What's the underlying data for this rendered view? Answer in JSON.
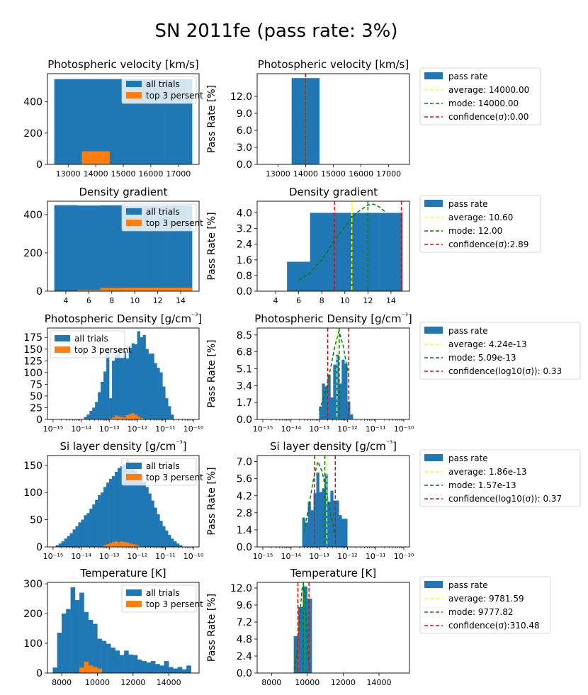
{
  "figure_title": "SN 2011fe (pass rate: 3%)",
  "colors": {
    "all_trials": "#1f77b4",
    "top": "#ff7f0e",
    "pass_rate": "#1f77b4",
    "average": "#ffff00",
    "mode": "#008000",
    "confidence": "#ff0000"
  },
  "chart_data": [
    {
      "id": "velocity",
      "left": {
        "type": "bar",
        "title": "Photospheric velocity [km/s]",
        "x_scale": "linear",
        "xlim": [
          12250,
          17750
        ],
        "xticks": [
          13000,
          14000,
          15000,
          16000,
          17000
        ],
        "xtick_labels": [
          "13000",
          "14000",
          "15000",
          "16000",
          "17000"
        ],
        "ylim": [
          0,
          580
        ],
        "yticks": [
          0,
          200,
          400
        ],
        "ytick_labels": [
          "0",
          "200",
          "400"
        ],
        "legend": {
          "position": "top-right",
          "labels": [
            "all trials",
            "top 3 persent"
          ]
        },
        "series": [
          {
            "name": "all trials",
            "edges": [
              12500,
              13500,
              14500,
              15500,
              16500,
              17500
            ],
            "values": [
              545,
              545,
              545,
              545,
              545
            ]
          },
          {
            "name": "top 3 persent",
            "edges": [
              13500,
              14500
            ],
            "values": [
              83
            ]
          }
        ]
      },
      "right": {
        "type": "bar",
        "title": "Photospheric velocity [km/s]",
        "ylabel": "Pass Rate [%]",
        "x_scale": "linear",
        "xlim": [
          12250,
          17750
        ],
        "xticks": [
          13000,
          14000,
          15000,
          16000,
          17000
        ],
        "xtick_labels": [
          "13000",
          "14000",
          "15000",
          "16000",
          "17000"
        ],
        "ylim": [
          0,
          16
        ],
        "yticks": [
          0,
          3,
          6,
          9,
          12
        ],
        "ytick_labels": [
          "0.0",
          "3.0",
          "6.0",
          "9.0",
          "12.0"
        ],
        "bars": {
          "edges": [
            13500,
            14500
          ],
          "values": [
            15.2
          ]
        },
        "mode_curve": [],
        "vlines": {
          "average": 14000,
          "mode": 14000,
          "confidence": [
            14000
          ]
        },
        "legend": [
          "pass rate",
          "average: 14000.00",
          "mode: 14000.00",
          "confidence(σ):0.00"
        ]
      }
    },
    {
      "id": "density_gradient",
      "left": {
        "type": "bar",
        "title": "Density gradient",
        "x_scale": "linear",
        "xlim": [
          2.4,
          15.6
        ],
        "xticks": [
          4,
          6,
          8,
          10,
          12,
          14
        ],
        "xtick_labels": [
          "4",
          "6",
          "8",
          "10",
          "12",
          "14"
        ],
        "ylim": [
          0,
          470
        ],
        "yticks": [
          0,
          200,
          400
        ],
        "ytick_labels": [
          "0",
          "200",
          "400"
        ],
        "legend": {
          "position": "top-right",
          "labels": [
            "all trials",
            "top 3 persent"
          ]
        },
        "series": [
          {
            "name": "all trials",
            "edges": [
              3,
              5,
              7,
              9,
              11,
              13,
              15
            ],
            "values": [
              449,
              447,
              448,
              446,
              447,
              448
            ]
          },
          {
            "name": "top 3 persent",
            "edges": [
              5,
              7,
              9,
              11,
              13,
              15
            ],
            "values": [
              7,
              17,
              18,
              18,
              18
            ]
          }
        ]
      },
      "right": {
        "type": "bar",
        "title": "Density gradient",
        "ylabel": "Pass Rate [%]",
        "x_scale": "linear",
        "xlim": [
          2.4,
          15.6
        ],
        "xticks": [
          4,
          6,
          8,
          10,
          12,
          14
        ],
        "xtick_labels": [
          "4",
          "6",
          "8",
          "10",
          "12",
          "14"
        ],
        "ylim": [
          0,
          4.6
        ],
        "yticks": [
          0,
          0.8,
          1.6,
          2.4,
          3.2,
          4.0
        ],
        "ytick_labels": [
          "0.0",
          "0.8",
          "1.6",
          "2.4",
          "3.2",
          "4.0"
        ],
        "bars": {
          "edges": [
            5,
            7,
            9,
            11,
            13,
            15
          ],
          "values": [
            1.5,
            4.0,
            4.0,
            4.0,
            4.0
          ]
        },
        "mode_curve": [
          [
            6,
            0.55
          ],
          [
            7,
            0.95
          ],
          [
            8,
            1.6
          ],
          [
            9,
            2.5
          ],
          [
            10,
            3.3
          ],
          [
            11,
            4.0
          ],
          [
            12,
            4.4
          ],
          [
            12.5,
            4.45
          ],
          [
            13,
            4.3
          ],
          [
            13.5,
            4.05
          ]
        ],
        "vlines": {
          "average": 10.6,
          "mode": 12.0,
          "confidence": [
            9.1,
            14.9
          ]
        },
        "legend": [
          "pass rate",
          "average: 10.60",
          "mode: 12.00",
          "confidence(σ):2.89"
        ]
      }
    },
    {
      "id": "photospheric_density",
      "left": {
        "type": "bar",
        "title": "Photospheric Density [g/cm$^{-3}$]",
        "x_scale": "log",
        "xlim": [
          -15.2,
          -9.8
        ],
        "xticks": [
          -15,
          -14,
          -13,
          -12,
          -11,
          -10
        ],
        "xtick_labels": [
          "10⁻¹⁵",
          "10⁻¹⁴",
          "10⁻¹³",
          "10⁻¹²",
          "10⁻¹¹",
          "10⁻¹⁰"
        ],
        "ylim": [
          0,
          195
        ],
        "yticks": [
          0,
          25,
          50,
          75,
          100,
          125,
          150,
          175
        ],
        "ytick_labels": [
          "0",
          "25",
          "50",
          "75",
          "100",
          "125",
          "150",
          "175"
        ],
        "legend": {
          "position": "top-left",
          "labels": [
            "all trials",
            "top 3 persent"
          ]
        },
        "series": [
          {
            "name": "all trials",
            "bin_start": -13.9,
            "bin_width": 0.1,
            "values": [
              5,
              10,
              18,
              25,
              37,
              58,
              80,
              102,
              145,
              45,
              125,
              138,
              150,
              132,
              145,
              130,
              150,
              162,
              160,
              188,
              175,
              180,
              150,
              140,
              140,
              120,
              110,
              100,
              70,
              45,
              28,
              10
            ]
          },
          {
            "name": "top 3 persent",
            "bin_start": -13.0,
            "bin_width": 0.1,
            "values": [
              2,
              4,
              8,
              6,
              5,
              4,
              9,
              11,
              13,
              10,
              6,
              3
            ]
          }
        ]
      },
      "right": {
        "type": "bar",
        "title": "Photospheric Density [g/cm$^{-3}$]",
        "ylabel": "Pass Rate [%]",
        "x_scale": "log",
        "xlim": [
          -15.2,
          -9.8
        ],
        "xticks": [
          -15,
          -14,
          -13,
          -12,
          -11,
          -10
        ],
        "xtick_labels": [
          "10⁻¹⁵",
          "10⁻¹⁴",
          "10⁻¹³",
          "10⁻¹²",
          "10⁻¹¹",
          "10⁻¹⁰"
        ],
        "ylim": [
          0,
          9.2
        ],
        "yticks": [
          0,
          1.7,
          3.4,
          5.1,
          6.8,
          8.5
        ],
        "ytick_labels": [
          "0.0",
          "1.7",
          "3.4",
          "5.1",
          "6.8",
          "8.5"
        ],
        "bars": {
          "bin_start": -13.0,
          "bin_width": 0.1,
          "values": [
            1.3,
            3.6,
            3.3,
            4.5,
            2.2,
            5.5,
            6.5,
            3.6,
            6.0,
            5.6,
            1.8,
            0.5
          ]
        },
        "mode_curve": [
          [
            -13.0,
            0.9
          ],
          [
            -12.8,
            2.5
          ],
          [
            -12.6,
            5.1
          ],
          [
            -12.45,
            7.3
          ],
          [
            -12.3,
            8.9
          ],
          [
            -12.15,
            7.4
          ],
          [
            -12.0,
            5.0
          ],
          [
            -11.95,
            4.6
          ]
        ],
        "vlines": {
          "average": -12.37,
          "mode": -12.29,
          "confidence": [
            -12.7,
            -11.96
          ]
        },
        "legend": [
          "pass rate",
          "average: 4.24e-13",
          "mode: 5.09e-13",
          "confidence(log10(σ)): 0.33"
        ]
      }
    },
    {
      "id": "si_layer_density",
      "left": {
        "type": "bar",
        "title": "Si layer density [g/cm$^{-3}$]",
        "x_scale": "log",
        "xlim": [
          -15.2,
          -9.8
        ],
        "xticks": [
          -15,
          -14,
          -13,
          -12,
          -11,
          -10
        ],
        "xtick_labels": [
          "10⁻¹⁵",
          "10⁻¹⁴",
          "10⁻¹³",
          "10⁻¹²",
          "10⁻¹¹",
          "10⁻¹⁰"
        ],
        "ylim": [
          0,
          168
        ],
        "yticks": [
          0,
          50,
          100,
          150
        ],
        "ytick_labels": [
          "0",
          "50",
          "100",
          "150"
        ],
        "legend": {
          "position": "top-right",
          "labels": [
            "all trials",
            "top 3 persent"
          ]
        },
        "series": [
          {
            "name": "all trials",
            "bin_start": -14.9,
            "bin_width": 0.1,
            "values": [
              3,
              6,
              10,
              15,
              20,
              25,
              32,
              38,
              45,
              50,
              58,
              62,
              70,
              78,
              86,
              95,
              100,
              110,
              118,
              125,
              130,
              138,
              145,
              148,
              152,
              160,
              150,
              145,
              140,
              135,
              130,
              120,
              110,
              98,
              85,
              72,
              60,
              48,
              38,
              30,
              22,
              15,
              10,
              6,
              3
            ]
          },
          {
            "name": "top 3 persent",
            "bin_start": -13.2,
            "bin_width": 0.1,
            "values": [
              3,
              5,
              7,
              9,
              10,
              8,
              10,
              9,
              8,
              6,
              5,
              4,
              2
            ]
          }
        ]
      },
      "right": {
        "type": "bar",
        "title": "Si layer density [g/cm$^{-3}$]",
        "ylabel": "Pass Rate [%]",
        "x_scale": "log",
        "xlim": [
          -15.2,
          -9.8
        ],
        "xticks": [
          -15,
          -14,
          -13,
          -12,
          -11,
          -10
        ],
        "xtick_labels": [
          "10⁻¹⁵",
          "10⁻¹⁴",
          "10⁻¹³",
          "10⁻¹²",
          "10⁻¹¹",
          "10⁻¹⁰"
        ],
        "ylim": [
          0,
          7.5
        ],
        "yticks": [
          0,
          1.4,
          2.8,
          4.2,
          5.6,
          7.0
        ],
        "ytick_labels": [
          "0.0",
          "1.4",
          "2.8",
          "4.2",
          "5.6",
          "7.0"
        ],
        "bars": {
          "bin_start": -13.6,
          "bin_width": 0.1,
          "values": [
            2.4,
            2.0,
            3.7,
            3.0,
            4.4,
            6.1,
            4.5,
            4.8,
            6.0,
            3.7,
            4.6,
            3.8,
            3.8,
            2.6,
            2.3,
            2.3
          ]
        },
        "mode_curve": [
          [
            -13.55,
            1.2
          ],
          [
            -13.4,
            2.9
          ],
          [
            -13.2,
            5.6
          ],
          [
            -13.05,
            7.0
          ],
          [
            -12.9,
            6.2
          ],
          [
            -12.7,
            4.0
          ],
          [
            -12.55,
            2.2
          ],
          [
            -12.45,
            1.2
          ]
        ],
        "vlines": {
          "average": -12.73,
          "mode": -12.8,
          "confidence": [
            -13.17,
            -12.43
          ]
        },
        "legend": [
          "pass rate",
          "average: 1.86e-13",
          "mode: 1.57e-13",
          "confidence(log10(σ)): 0.37"
        ]
      }
    },
    {
      "id": "temperature",
      "left": {
        "type": "bar",
        "title": "Temperature [K]",
        "x_scale": "linear",
        "xlim": [
          7200,
          15700
        ],
        "xticks": [
          8000,
          10000,
          12000,
          14000
        ],
        "xtick_labels": [
          "8000",
          "10000",
          "12000",
          "14000"
        ],
        "ylim": [
          0,
          305
        ],
        "yticks": [
          0,
          100,
          200,
          300
        ],
        "ytick_labels": [
          "0",
          "100",
          "200",
          "300"
        ],
        "legend": {
          "position": "top-right",
          "labels": [
            "all trials",
            "top 3 persent"
          ]
        },
        "series": [
          {
            "name": "all trials",
            "bin_start": 7500,
            "bin_width": 250,
            "values": [
              18,
              135,
              200,
              215,
              288,
              245,
              270,
              205,
              178,
              165,
              115,
              108,
              98,
              85,
              75,
              60,
              75,
              62,
              60,
              45,
              40,
              35,
              40,
              30,
              25,
              40,
              20,
              15,
              20,
              12,
              25
            ]
          },
          {
            "name": "top 3 persent",
            "bin_start": 9000,
            "bin_width": 250,
            "values": [
              18,
              38,
              25,
              20,
              15
            ]
          }
        ]
      },
      "right": {
        "type": "bar",
        "title": "Temperature [K]",
        "ylabel": "Pass Rate [%]",
        "x_scale": "linear",
        "xlim": [
          7200,
          15700
        ],
        "xticks": [
          8000,
          10000,
          12000,
          14000
        ],
        "xtick_labels": [
          "8000",
          "10000",
          "12000",
          "14000"
        ],
        "ylim": [
          0,
          12.8
        ],
        "yticks": [
          0,
          2.4,
          4.8,
          7.2,
          9.6,
          12.0
        ],
        "ytick_labels": [
          "0.0",
          "2.4",
          "4.8",
          "7.2",
          "9.6",
          "12.0"
        ],
        "bars": {
          "edges": [
            9250,
            9500,
            9750,
            10000,
            10250
          ],
          "values": [
            5.2,
            9.3,
            12.2,
            10.5
          ]
        },
        "mode_curve": [
          [
            9300,
            0.5
          ],
          [
            9450,
            3.5
          ],
          [
            9600,
            8.5
          ],
          [
            9700,
            11.8
          ],
          [
            9780,
            12.5
          ],
          [
            9860,
            11.0
          ],
          [
            9950,
            7.0
          ],
          [
            10050,
            2.0
          ],
          [
            10100,
            0.5
          ]
        ],
        "vlines": {
          "average": 9781.59,
          "mode": 9777.82,
          "confidence": [
            9471,
            10092
          ]
        },
        "legend": [
          "pass rate",
          "average: 9781.59",
          "mode: 9777.82",
          "confidence(σ):310.48"
        ]
      }
    }
  ]
}
